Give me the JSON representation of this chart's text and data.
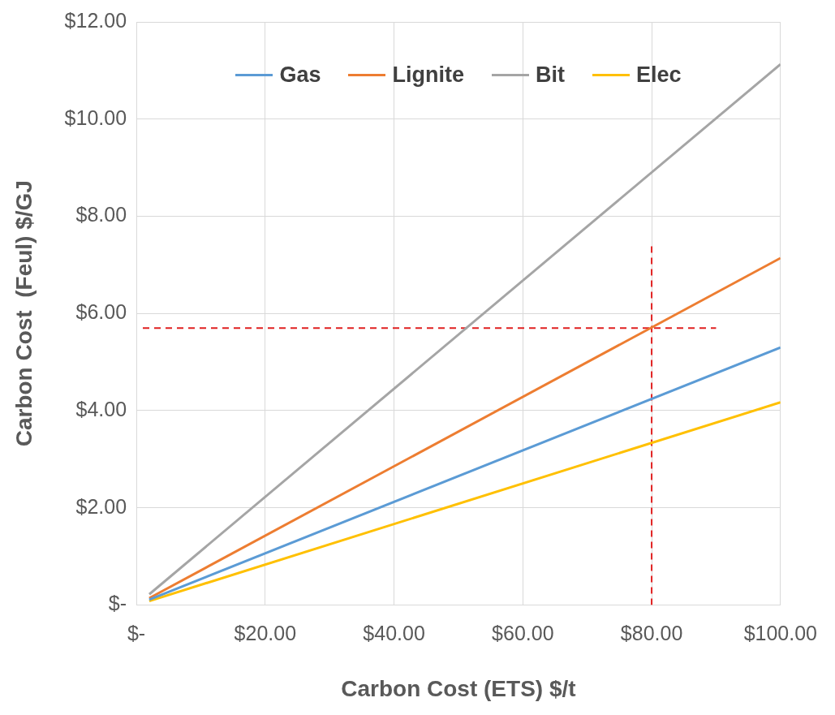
{
  "chart_data": {
    "type": "line",
    "xlabel": "Carbon Cost (ETS) $/t",
    "ylabel": "Carbon Cost  (Feul) $/GJ",
    "xlim": [
      0,
      100
    ],
    "ylim": [
      0,
      12
    ],
    "xticks": [
      {
        "value": 0,
        "label": "$-"
      },
      {
        "value": 20,
        "label": "$20.00"
      },
      {
        "value": 40,
        "label": "$40.00"
      },
      {
        "value": 60,
        "label": "$60.00"
      },
      {
        "value": 80,
        "label": "$80.00"
      },
      {
        "value": 100,
        "label": "$100.00"
      }
    ],
    "yticks": [
      {
        "value": 0,
        "label": "$-"
      },
      {
        "value": 2,
        "label": "$2.00"
      },
      {
        "value": 4,
        "label": "$4.00"
      },
      {
        "value": 6,
        "label": "$6.00"
      },
      {
        "value": 8,
        "label": "$8.00"
      },
      {
        "value": 10,
        "label": "$10.00"
      },
      {
        "value": 12,
        "label": "$12.00"
      }
    ],
    "grid": true,
    "legend": "top",
    "marker": "none",
    "series": [
      {
        "name": "Gas",
        "color": "#5b9bd5",
        "x": [
          2,
          100
        ],
        "values": [
          0.11,
          5.3
        ]
      },
      {
        "name": "Lignite",
        "color": "#ed7d31",
        "x": [
          2,
          100
        ],
        "values": [
          0.14,
          7.14
        ]
      },
      {
        "name": "Bit",
        "color": "#a5a5a5",
        "x": [
          2,
          100
        ],
        "values": [
          0.22,
          11.13
        ]
      },
      {
        "name": "Elec",
        "color": "#ffc000",
        "x": [
          2,
          100
        ],
        "values": [
          0.08,
          4.17
        ]
      },
      {
        "color": "#e02020",
        "line_style": "dashed",
        "x": [
          1,
          90
        ],
        "values": [
          5.7,
          5.7
        ]
      },
      {
        "color": "#e02020",
        "line_style": "dashed",
        "x": [
          80,
          80
        ],
        "values": [
          0,
          7.45
        ]
      }
    ]
  }
}
